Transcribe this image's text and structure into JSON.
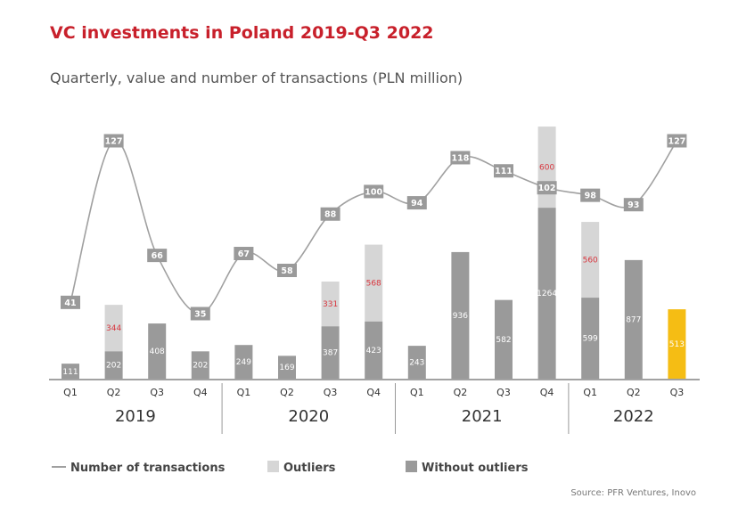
{
  "title": "VC investments in Poland 2019-Q3 2022",
  "subtitle": "Quarterly, value and number of transactions (PLN million)",
  "source": "Source: PFR Ventures, Inovo",
  "colors": {
    "base": "#9a9a9a",
    "outliers": "#d6d6d6",
    "highlight": "#f5bd14",
    "line": "#a0a0a0",
    "outlier_text": "#d9363e",
    "title": "#c8202b"
  },
  "chart_data": {
    "type": "bar",
    "categories": [
      "Q1",
      "Q2",
      "Q3",
      "Q4",
      "Q1",
      "Q2",
      "Q3",
      "Q4",
      "Q1",
      "Q2",
      "Q3",
      "Q4",
      "Q1",
      "Q2",
      "Q3"
    ],
    "years": [
      "2019",
      "2020",
      "2021",
      "2022"
    ],
    "series": [
      {
        "name": "Without outliers",
        "values": [
          111,
          202,
          408,
          202,
          249,
          169,
          387,
          423,
          243,
          936,
          582,
          1264,
          599,
          877,
          513
        ]
      },
      {
        "name": "Outliers",
        "values": [
          null,
          344,
          null,
          null,
          null,
          null,
          331,
          568,
          null,
          null,
          null,
          600,
          560,
          null,
          null
        ]
      },
      {
        "name": "Number of transactions",
        "values": [
          41,
          127,
          66,
          35,
          67,
          58,
          88,
          100,
          94,
          118,
          111,
          102,
          98,
          93,
          127
        ]
      }
    ],
    "highlight_index": 14,
    "legend": [
      "Number of transactions",
      "Outliers",
      "Without outliers"
    ],
    "legend_position": "bottom-left"
  }
}
